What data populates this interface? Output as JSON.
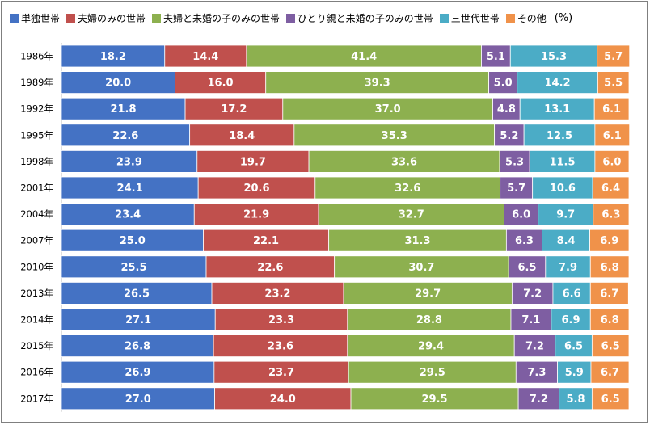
{
  "chart_data": {
    "type": "bar",
    "orientation": "horizontal",
    "stacked": true,
    "unit": "(%)",
    "categories": [
      "1986年",
      "1989年",
      "1992年",
      "1995年",
      "1998年",
      "2001年",
      "2004年",
      "2007年",
      "2010年",
      "2013年",
      "2014年",
      "2015年",
      "2016年",
      "2017年"
    ],
    "series": [
      {
        "name": "単独世帯",
        "color": "#4472c4",
        "values": [
          18.2,
          20.0,
          21.8,
          22.6,
          23.9,
          24.1,
          23.4,
          25.0,
          25.5,
          26.5,
          27.1,
          26.8,
          26.9,
          27.0
        ]
      },
      {
        "name": "夫婦のみの世帯",
        "color": "#c0504d",
        "values": [
          14.4,
          16.0,
          17.2,
          18.4,
          19.7,
          20.6,
          21.9,
          22.1,
          22.6,
          23.2,
          23.3,
          23.6,
          23.7,
          24.0
        ]
      },
      {
        "name": "夫婦と未婚の子のみの世帯",
        "color": "#8db04f",
        "values": [
          41.4,
          39.3,
          37.0,
          35.3,
          33.6,
          32.6,
          32.7,
          31.3,
          30.7,
          29.7,
          28.8,
          29.4,
          29.5,
          29.5
        ]
      },
      {
        "name": "ひとり親と未婚の子のみの世帯",
        "color": "#7e5ea2",
        "values": [
          5.1,
          5.0,
          4.8,
          5.2,
          5.3,
          5.7,
          6.0,
          6.3,
          6.5,
          7.2,
          7.1,
          7.2,
          7.3,
          7.2
        ]
      },
      {
        "name": "三世代世帯",
        "color": "#4bacc6",
        "values": [
          15.3,
          14.2,
          13.1,
          12.5,
          11.5,
          10.6,
          9.7,
          8.4,
          7.9,
          6.6,
          6.9,
          6.5,
          5.9,
          5.8
        ]
      },
      {
        "name": "その他",
        "color": "#f0924a",
        "values": [
          5.7,
          5.5,
          6.1,
          6.1,
          6.0,
          6.4,
          6.3,
          6.9,
          6.8,
          6.7,
          6.8,
          6.5,
          6.7,
          6.5
        ]
      }
    ],
    "xlim": [
      0,
      100
    ],
    "grid": false,
    "legend_position": "top"
  }
}
